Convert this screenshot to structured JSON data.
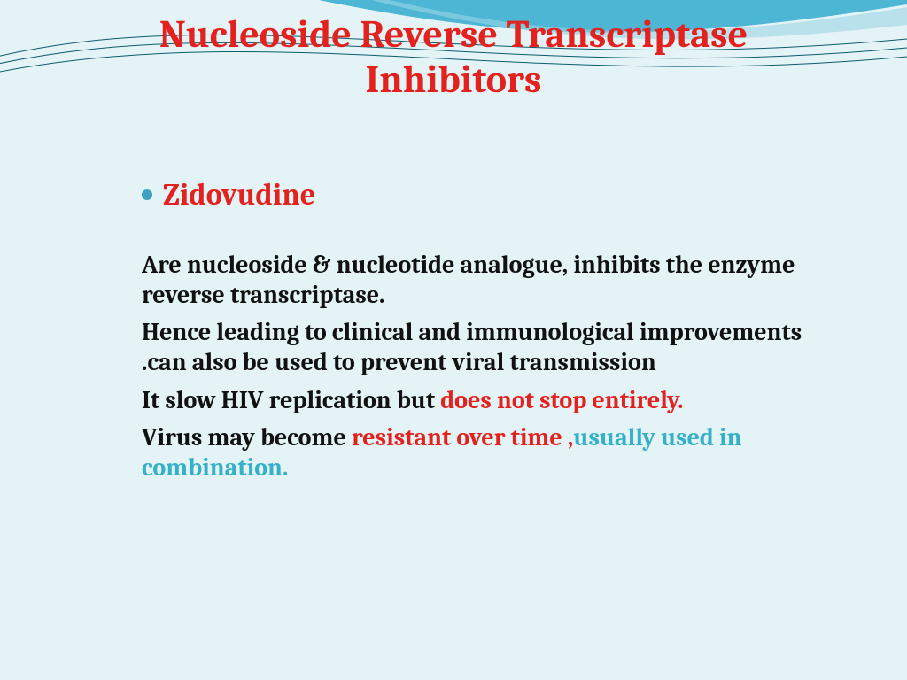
{
  "colors": {
    "background": "#e4f3f6",
    "title": "#e3221f",
    "bullet_dot": "#3da2c2",
    "bullet_text": "#e3221f",
    "body_text": "#111111",
    "highlight_red": "#e3221f",
    "highlight_teal": "#34b0c8",
    "swoosh_fill": "#4db6d4",
    "swoosh_line": "#0b5c6e"
  },
  "typography": {
    "title_fontsize": 44,
    "bullet_fontsize": 34,
    "body_fontsize": 28,
    "bullet_dot_size": 12
  },
  "title": "Nucleoside Reverse Transcriptase\nInhibitors",
  "bullet": {
    "label": "Zidovudine"
  },
  "paragraphs": [
    {
      "runs": [
        {
          "text": "Are nucleoside & nucleotide analogue, inhibits the enzyme reverse transcriptase.",
          "color": "body_text"
        }
      ]
    },
    {
      "runs": [
        {
          "text": "Hence leading to clinical and immunological improvements .can  also be used to prevent viral transmission",
          "color": "body_text"
        }
      ]
    },
    {
      "runs": [
        {
          "text": "It slow HIV replication but ",
          "color": "body_text"
        },
        {
          "text": "does not stop entirely.",
          "color": "highlight_red"
        }
      ]
    },
    {
      "runs": [
        {
          "text": "Virus may become ",
          "color": "body_text"
        },
        {
          "text": "resistant over time ,",
          "color": "highlight_red"
        },
        {
          "text": "usually used in combination.",
          "color": "highlight_teal"
        }
      ]
    }
  ]
}
